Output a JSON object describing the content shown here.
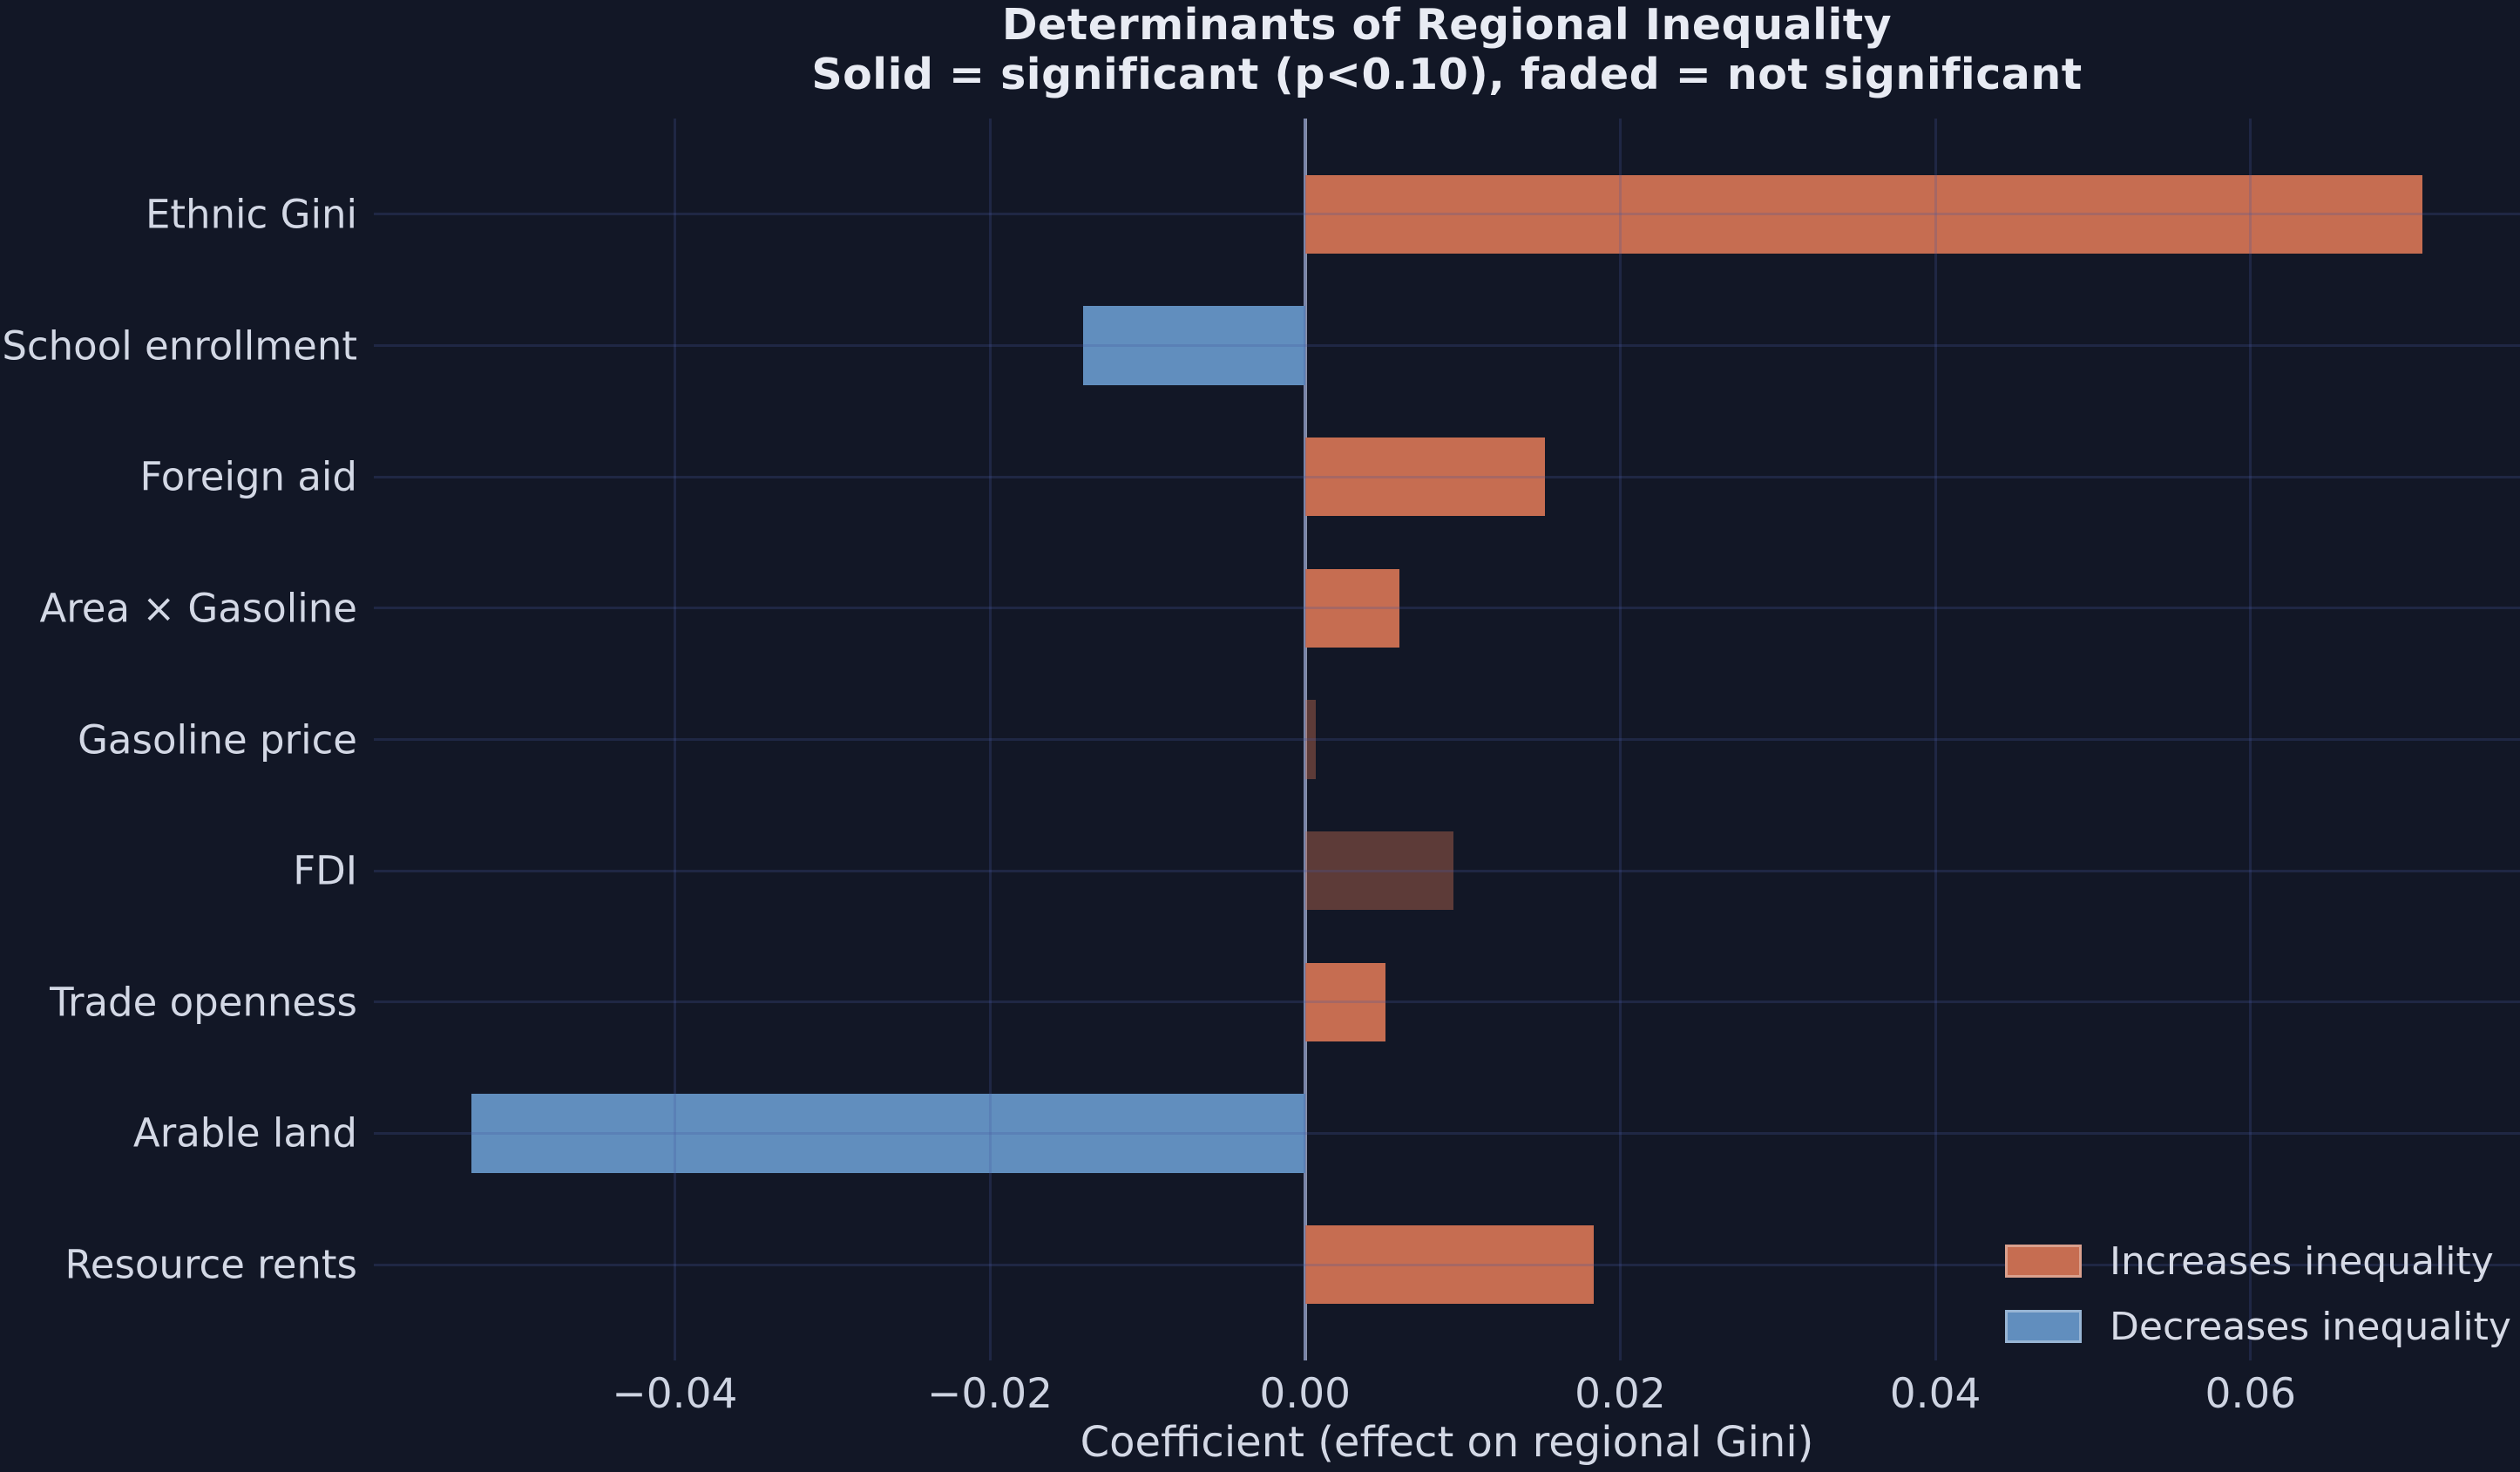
{
  "title": {
    "line1": "Determinants of Regional Inequality",
    "line2": "Solid = significant (p<0.10), faded = not significant"
  },
  "chart_data": {
    "type": "bar",
    "orientation": "horizontal",
    "title": "Determinants of Regional Inequality",
    "subtitle": "Solid = significant (p<0.10), faded = not significant",
    "categories": [
      "Ethnic Gini",
      "School enrollment",
      "Foreign aid",
      "Area × Gasoline",
      "Gasoline price",
      "FDI",
      "Trade openness",
      "Arable land",
      "Resource rents"
    ],
    "values": [
      0.0709,
      -0.0141,
      0.0152,
      0.006,
      0.0007,
      0.0094,
      0.0051,
      -0.0529,
      0.0183
    ],
    "significant": [
      true,
      true,
      true,
      true,
      false,
      false,
      true,
      true,
      true
    ],
    "xlabel": "Coefficient (effect on regional Gini)",
    "ylabel": "",
    "xlim": [
      -0.0591,
      0.0771
    ],
    "x_ticks": [
      -0.04,
      -0.02,
      0,
      0.02,
      0.04,
      0.06
    ],
    "x_tick_labels": [
      "−0.04",
      "−0.02",
      "0.00",
      "0.02",
      "0.04",
      "0.06"
    ],
    "grid": true,
    "bar_height_fraction": 0.6,
    "zero_line": true,
    "legend": {
      "position": "lower right",
      "entries": [
        {
          "label": "Increases inequality",
          "color": "#c66d51"
        },
        {
          "label": "Decreases inequality",
          "color": "#618ebe"
        }
      ]
    },
    "colors": {
      "background": "#121726",
      "positive": "#c66d51",
      "negative": "#618ebe",
      "faded_alpha": 0.42,
      "grid": "rgba(70,88,160,0.25)",
      "zero_line": "#8a93ab",
      "text": "#d3d8e5",
      "title_text": "#e8ebf3"
    }
  }
}
